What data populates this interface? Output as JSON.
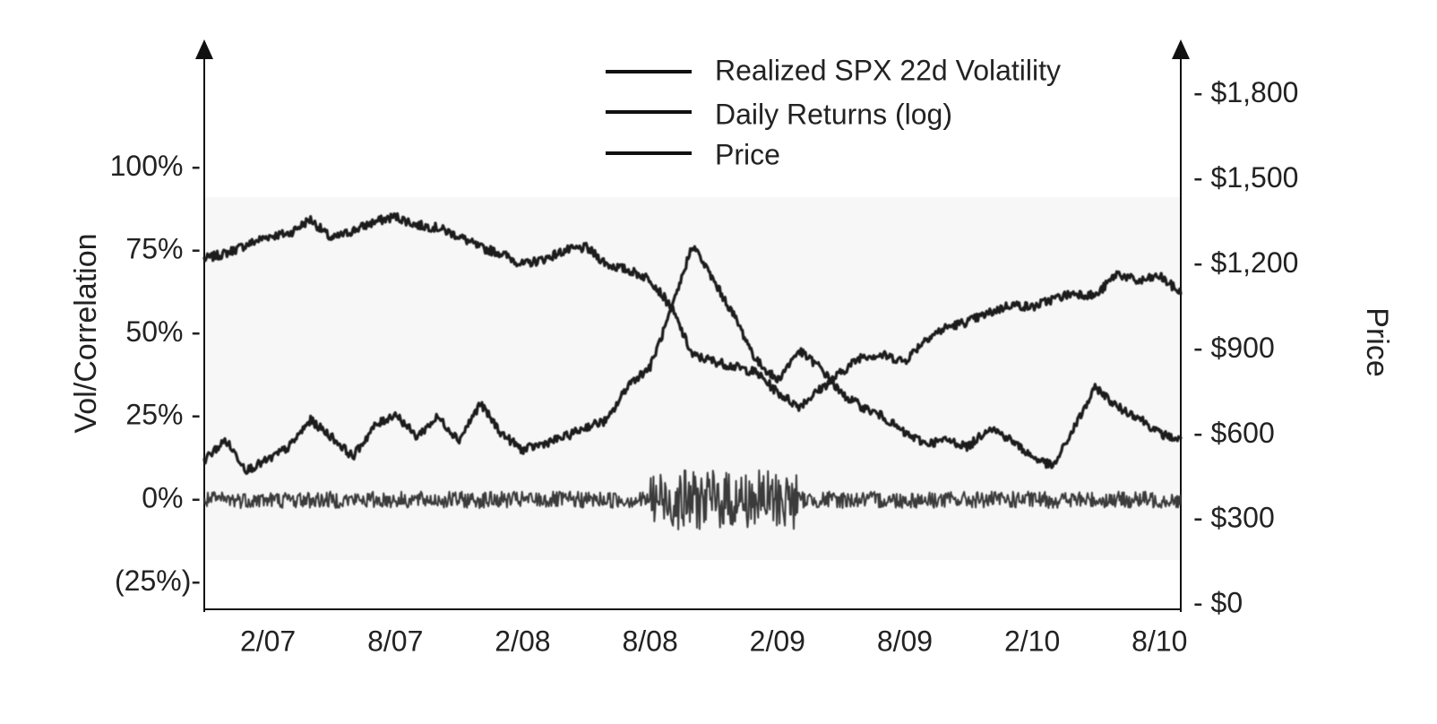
{
  "chart_data": {
    "type": "line",
    "x_tick_labels": [
      "2/07",
      "8/07",
      "2/08",
      "8/08",
      "2/09",
      "8/09",
      "2/10",
      "8/10"
    ],
    "x_range": [
      "2006-11",
      "2010-09"
    ],
    "left_axis": {
      "label": "Vol/Correlation",
      "tick_labels": [
        "(25%)-",
        "0% -",
        "25% -",
        "50% -",
        "75% -",
        "100% -"
      ],
      "ticks": [
        -25,
        0,
        25,
        50,
        75,
        100
      ],
      "range": [
        -33,
        135
      ]
    },
    "right_axis": {
      "label": "Price",
      "tick_labels": [
        "- $0",
        "- $300",
        "- $600",
        "- $900",
        "- $1,200",
        "- $1,500",
        "- $1,800"
      ],
      "ticks": [
        0,
        300,
        600,
        900,
        1200,
        1500,
        1800
      ],
      "range": [
        -15,
        1950
      ]
    },
    "legend": {
      "placement": "top-center",
      "entries": [
        "Realized SPX 22d Volatility",
        "Daily Returns (log)",
        "Price"
      ]
    },
    "series": [
      {
        "name": "Price",
        "axis": "right",
        "color": "#1a1a1a",
        "x": [
          "2006-11",
          "2006-12",
          "2007-01",
          "2007-02",
          "2007-03",
          "2007-04",
          "2007-05",
          "2007-06",
          "2007-07",
          "2007-08",
          "2007-09",
          "2007-10",
          "2007-11",
          "2007-12",
          "2008-01",
          "2008-02",
          "2008-03",
          "2008-04",
          "2008-05",
          "2008-06",
          "2008-07",
          "2008-08",
          "2008-09",
          "2008-10",
          "2008-11",
          "2008-12",
          "2009-01",
          "2009-02",
          "2009-03",
          "2009-04",
          "2009-05",
          "2009-06",
          "2009-07",
          "2009-08",
          "2009-09",
          "2009-10",
          "2009-11",
          "2009-12",
          "2010-01",
          "2010-02",
          "2010-03",
          "2010-04",
          "2010-05",
          "2010-06",
          "2010-07",
          "2010-08",
          "2010-09"
        ],
        "values": [
          1220,
          1240,
          1270,
          1300,
          1310,
          1360,
          1290,
          1320,
          1350,
          1370,
          1340,
          1330,
          1300,
          1260,
          1240,
          1200,
          1220,
          1250,
          1260,
          1200,
          1180,
          1150,
          1050,
          880,
          860,
          840,
          820,
          750,
          700,
          760,
          820,
          880,
          880,
          860,
          940,
          980,
          1000,
          1030,
          1060,
          1050,
          1080,
          1100,
          1090,
          1170,
          1140,
          1160,
          1100
        ]
      },
      {
        "name": "Realized SPX 22d Volatility",
        "axis": "left",
        "color": "#1a1a1a",
        "x": [
          "2006-11",
          "2006-12",
          "2007-01",
          "2007-02",
          "2007-03",
          "2007-04",
          "2007-05",
          "2007-06",
          "2007-07",
          "2007-08",
          "2007-09",
          "2007-10",
          "2007-11",
          "2007-12",
          "2008-01",
          "2008-02",
          "2008-03",
          "2008-04",
          "2008-05",
          "2008-06",
          "2008-07",
          "2008-08",
          "2008-09",
          "2008-10",
          "2008-11",
          "2008-12",
          "2009-01",
          "2009-02",
          "2009-03",
          "2009-04",
          "2009-05",
          "2009-06",
          "2009-07",
          "2009-08",
          "2009-09",
          "2009-10",
          "2009-11",
          "2009-12",
          "2010-01",
          "2010-02",
          "2010-03",
          "2010-04",
          "2010-05",
          "2010-06",
          "2010-07",
          "2010-08",
          "2010-09"
        ],
        "values": [
          12,
          18,
          9,
          12,
          16,
          24,
          19,
          13,
          22,
          26,
          19,
          25,
          18,
          29,
          20,
          15,
          17,
          19,
          22,
          24,
          35,
          40,
          57,
          77,
          66,
          55,
          42,
          36,
          45,
          40,
          32,
          28,
          25,
          20,
          17,
          18,
          16,
          22,
          18,
          13,
          10,
          22,
          34,
          28,
          25,
          20,
          18
        ]
      },
      {
        "name": "Daily Returns (log)",
        "axis": "left",
        "color": "#3a3a3a",
        "x": [
          "2006-11",
          "2010-09"
        ],
        "values": [
          0,
          0
        ]
      }
    ]
  }
}
